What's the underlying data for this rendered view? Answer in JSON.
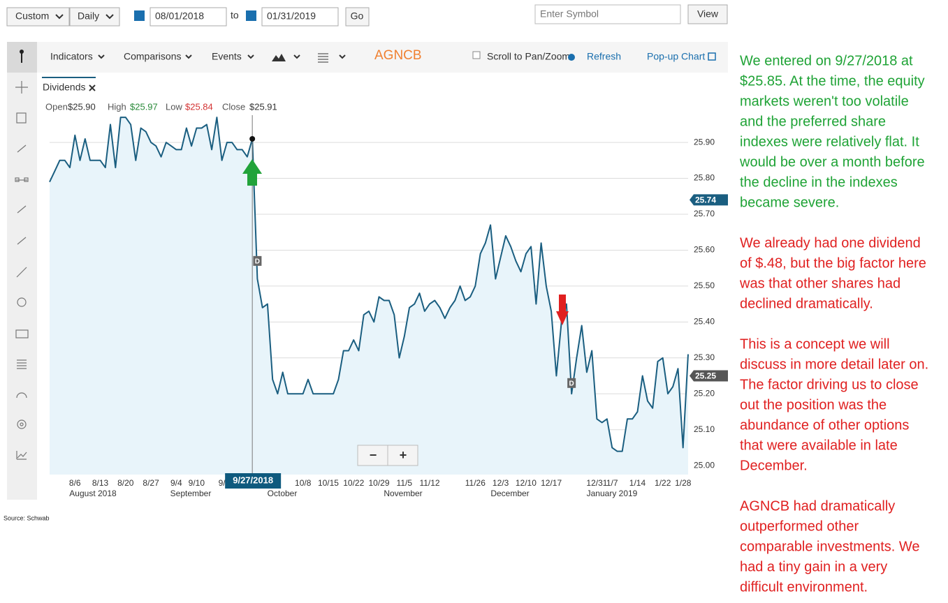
{
  "controls": {
    "range": "Custom",
    "interval": "Daily",
    "start_date": "08/01/2018",
    "to": "to",
    "end_date": "01/31/2019",
    "go": "Go",
    "symbol_placeholder": "Enter Symbol",
    "view": "View"
  },
  "toolbar": {
    "indicators": "Indicators",
    "comparisons": "Comparisons",
    "events": "Events",
    "symbol": "AGNCB",
    "scroll": "Scroll to Pan/Zoom",
    "refresh": "Refresh",
    "popup": "Pop-up Chart"
  },
  "tab": "Dividends",
  "chart_data": {
    "type": "line",
    "color": "#1a5e80",
    "fill": "#e8f4fa",
    "grid": true,
    "stats": [
      {
        "name": "Open",
        "label": "$25.90",
        "color": "#333333"
      },
      {
        "name": "High",
        "label": "$25.97",
        "color": "#2a8a3a"
      },
      {
        "name": "Low",
        "label": "$25.84",
        "color": "#d33333"
      },
      {
        "name": "Close",
        "label": "$25.91",
        "color": "#333333"
      }
    ],
    "categories": [
      null,
      null,
      null,
      null,
      null,
      "8/6",
      null,
      null,
      null,
      null,
      "8/13",
      null,
      null,
      null,
      null,
      "8/20",
      null,
      null,
      null,
      null,
      "8/27",
      null,
      null,
      null,
      null,
      "9/4",
      null,
      null,
      null,
      "9/10",
      null,
      null,
      null,
      null,
      "9/",
      null,
      null,
      null,
      null,
      null,
      null,
      null,
      null,
      null,
      null,
      null,
      null,
      null,
      null,
      null,
      "10/8",
      null,
      null,
      null,
      null,
      "10/15",
      null,
      null,
      null,
      null,
      "10/22",
      null,
      null,
      null,
      null,
      "10/29",
      null,
      null,
      null,
      null,
      "11/5",
      null,
      null,
      null,
      null,
      "11/12",
      null,
      null,
      null,
      null,
      null,
      null,
      null,
      null,
      "11/26",
      null,
      null,
      null,
      null,
      "12/3",
      null,
      null,
      null,
      null,
      "12/10",
      null,
      null,
      null,
      null,
      "12/17",
      null,
      null,
      null,
      null,
      null,
      null,
      null,
      null,
      "12/31",
      null,
      null,
      "1/7",
      null,
      null,
      null,
      null,
      "1/14",
      null,
      null,
      null,
      null,
      "1/22",
      null,
      null,
      null,
      "1/28",
      null
    ],
    "values": [
      25.79,
      25.82,
      25.85,
      25.85,
      25.83,
      25.92,
      25.85,
      25.91,
      25.85,
      25.85,
      25.85,
      25.83,
      25.95,
      25.83,
      25.97,
      25.97,
      25.95,
      25.85,
      25.94,
      25.93,
      25.9,
      25.89,
      25.86,
      25.9,
      25.89,
      25.88,
      25.88,
      25.94,
      25.89,
      25.94,
      25.94,
      25.95,
      25.88,
      25.97,
      25.85,
      25.9,
      25.9,
      25.88,
      25.88,
      25.86,
      25.91,
      25.52,
      25.44,
      25.45,
      25.24,
      25.2,
      25.26,
      25.2,
      25.2,
      25.2,
      25.2,
      25.24,
      25.2,
      25.2,
      25.2,
      25.2,
      25.2,
      25.24,
      25.32,
      25.32,
      25.35,
      25.32,
      25.42,
      25.43,
      25.4,
      25.47,
      25.46,
      25.46,
      25.42,
      25.3,
      25.36,
      25.44,
      25.45,
      25.48,
      25.43,
      25.45,
      25.46,
      25.44,
      25.41,
      25.44,
      25.46,
      25.5,
      25.46,
      25.47,
      25.5,
      25.59,
      25.62,
      25.67,
      25.52,
      25.58,
      25.64,
      25.61,
      25.57,
      25.54,
      25.59,
      25.61,
      25.45,
      25.62,
      25.5,
      25.43,
      25.25,
      25.4,
      25.45,
      25.2,
      25.3,
      25.39,
      25.26,
      25.32,
      25.13,
      25.12,
      25.13,
      25.05,
      25.04,
      25.04,
      25.13,
      25.13,
      25.15,
      25.25,
      25.18,
      25.16,
      25.29,
      25.3,
      25.2,
      25.22,
      25.27,
      25.05,
      25.31
    ],
    "ylim": [
      24.975,
      25.976
    ],
    "yticks": [
      {
        "value": 25.0,
        "label": "25.00"
      },
      {
        "value": 25.1,
        "label": "25.10"
      },
      {
        "value": 25.2,
        "label": "25.20"
      },
      {
        "value": 25.3,
        "label": "25.30"
      },
      {
        "value": 25.4,
        "label": "25.40"
      },
      {
        "value": 25.5,
        "label": "25.50"
      },
      {
        "value": 25.6,
        "label": "25.60"
      },
      {
        "value": 25.7,
        "label": "25.70"
      },
      {
        "value": 25.8,
        "label": "25.80"
      },
      {
        "value": 25.9,
        "label": "25.90"
      }
    ],
    "x_month_labels": [
      "August 2018",
      "September",
      "October",
      "November",
      "December",
      "January 2019"
    ],
    "price_tags": [
      25.74,
      25.25
    ],
    "price_tag_colors": [
      "#1a5e80",
      "#555555"
    ],
    "crosshair_label": "9/27/2018",
    "dividend_marks": [
      {
        "label": "D",
        "value": 25.57
      },
      {
        "label": "D",
        "value": 25.23
      }
    ],
    "zoom": [
      "−",
      "+"
    ]
  },
  "source": "Source: Schwab",
  "annotations": [
    {
      "color": "#1fa336",
      "lines": [
        "We entered on 9/27/2018 at",
        "$25.85. At the time, the equity",
        "markets weren't too volatile",
        "and the preferred share",
        "indexes were relatively flat. It",
        "would be over a month before",
        "the decline in the indexes",
        "became severe."
      ]
    },
    {
      "color": "#e02020",
      "lines": [
        "We already had one dividend",
        "of $.48, but the big factor here",
        "was that other shares had",
        "declined dramatically."
      ]
    },
    {
      "color": "#e02020",
      "lines": [
        "This is a concept we will",
        "discuss in more detail later on.",
        "The factor driving us to close",
        "out the position was the",
        "abundance of other options",
        "that were available in late",
        "December."
      ]
    },
    {
      "color": "#e02020",
      "lines": [
        "AGNCB had dramatically",
        "outperformed other",
        "comparable investments. We",
        "had a tiny gain in a very",
        "difficult environment."
      ]
    }
  ]
}
